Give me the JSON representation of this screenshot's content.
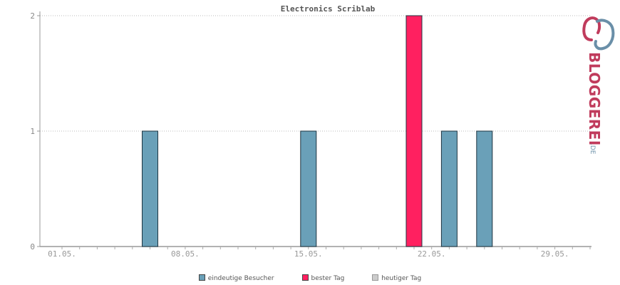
{
  "chart_data": {
    "type": "bar",
    "title": "Electronics Scriblab",
    "x_tick_labels": [
      "01.05.",
      "08.05.",
      "15.05.",
      "22.05.",
      "29.05."
    ],
    "x_range_days": [
      1,
      31
    ],
    "y_ticks": [
      "0",
      "1",
      "2"
    ],
    "ylim": [
      0,
      2
    ],
    "grid": true,
    "legend_position": "bottom-center",
    "series": [
      {
        "name": "eindeutige Besucher",
        "color": "#6aa0b8",
        "points": [
          {
            "x": "06.05.",
            "day": 6,
            "value": 1
          },
          {
            "x": "15.05.",
            "day": 15,
            "value": 1
          },
          {
            "x": "23.05.",
            "day": 23,
            "value": 1
          },
          {
            "x": "25.05.",
            "day": 25,
            "value": 1
          }
        ]
      },
      {
        "name": "bester Tag",
        "color": "#ff2060",
        "points": [
          {
            "x": "21.05.",
            "day": 21,
            "value": 2
          }
        ]
      },
      {
        "name": "heutiger Tag",
        "color": "#cccccc",
        "points": []
      }
    ]
  },
  "logo": {
    "text": "BLOGGEREI",
    "suffix": ".DE",
    "colors": {
      "primary": "#c03b5c",
      "secondary": "#6a8fa8"
    }
  }
}
